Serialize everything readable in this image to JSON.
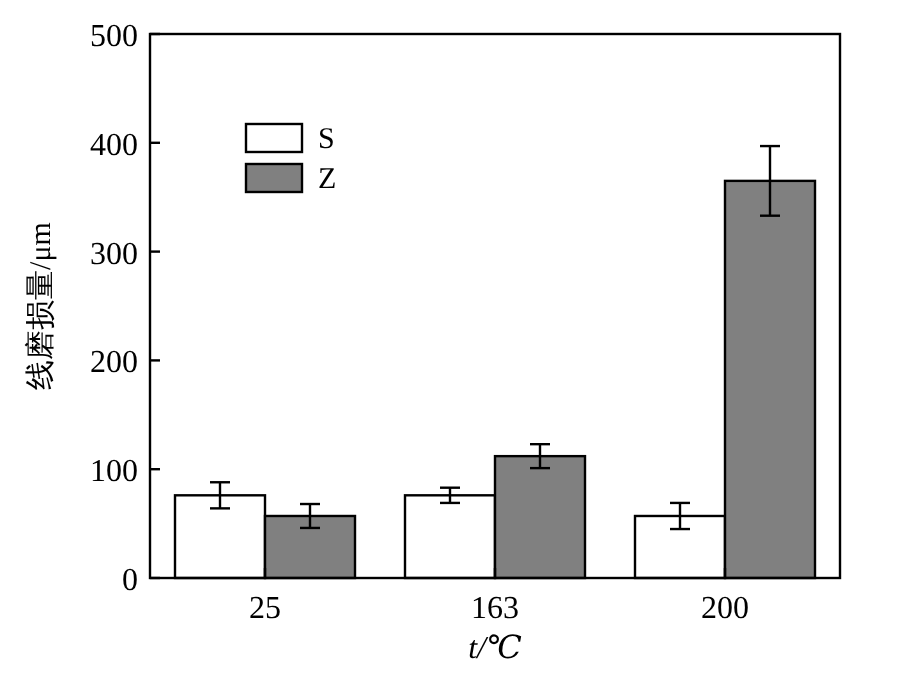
{
  "chart_data": {
    "type": "bar",
    "ylabel": "线磨损量/μm",
    "xlabel": "t/℃",
    "categories": [
      "25",
      "163",
      "200"
    ],
    "series": [
      {
        "name": "S",
        "color": "#ffffff",
        "values": [
          76,
          76,
          57
        ],
        "errors": [
          12,
          7,
          12
        ]
      },
      {
        "name": "Z",
        "color": "#808080",
        "values": [
          57,
          112,
          365
        ],
        "errors": [
          11,
          11,
          32
        ]
      }
    ],
    "ylim": [
      0,
      500
    ],
    "yticks": [
      0,
      100,
      200,
      300,
      400,
      500
    ],
    "legend": "top left",
    "grid": false
  }
}
